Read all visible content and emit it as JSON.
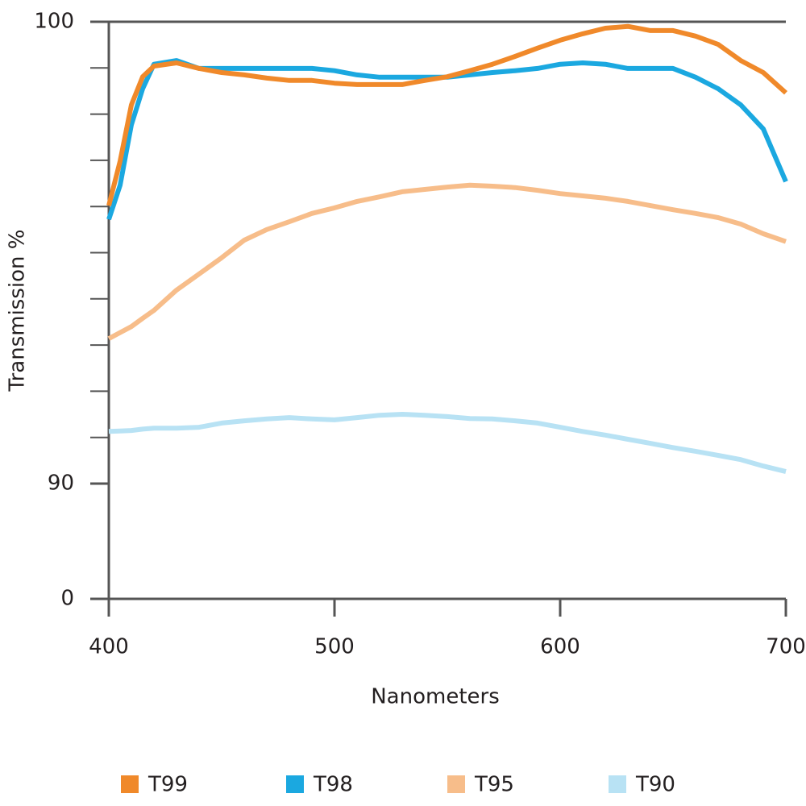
{
  "chart_data": {
    "type": "line",
    "xlabel": "Nanometers",
    "ylabel": "Transmission %",
    "x": [
      400,
      405,
      410,
      415,
      420,
      430,
      440,
      450,
      460,
      470,
      480,
      490,
      500,
      510,
      520,
      530,
      540,
      550,
      560,
      570,
      580,
      590,
      600,
      610,
      620,
      630,
      640,
      650,
      660,
      670,
      680,
      690,
      700
    ],
    "series": [
      {
        "name": "T99",
        "color": "#f0892a",
        "values": [
          96.02,
          96.98,
          98.2,
          98.81,
          99.04,
          99.11,
          98.99,
          98.9,
          98.85,
          98.78,
          98.73,
          98.73,
          98.67,
          98.64,
          98.64,
          98.64,
          98.73,
          98.81,
          98.94,
          99.08,
          99.25,
          99.43,
          99.6,
          99.74,
          99.86,
          99.9,
          99.81,
          99.81,
          99.69,
          99.51,
          99.16,
          98.9,
          98.46
        ]
      },
      {
        "name": "T98",
        "color": "#1ba8e0",
        "values": [
          95.72,
          96.46,
          97.77,
          98.55,
          99.08,
          99.16,
          98.99,
          98.99,
          98.99,
          98.99,
          98.99,
          98.99,
          98.94,
          98.85,
          98.8,
          98.8,
          98.8,
          98.8,
          98.85,
          98.9,
          98.94,
          98.99,
          99.08,
          99.11,
          99.08,
          98.99,
          98.99,
          98.99,
          98.8,
          98.55,
          98.2,
          97.68,
          96.54
        ]
      },
      {
        "name": "T95",
        "color": "#f7bd8a",
        "values": [
          93.14,
          93.27,
          93.4,
          93.58,
          93.75,
          94.19,
          94.54,
          94.89,
          95.27,
          95.5,
          95.67,
          95.85,
          95.97,
          96.11,
          96.21,
          96.32,
          96.37,
          96.42,
          96.46,
          96.44,
          96.41,
          96.35,
          96.28,
          96.23,
          96.18,
          96.11,
          96.02,
          95.93,
          95.85,
          95.76,
          95.62,
          95.41,
          95.24
        ]
      },
      {
        "name": "T90",
        "color": "#b8e2f4",
        "values": [
          91.13,
          91.14,
          91.15,
          91.18,
          91.2,
          91.2,
          91.22,
          91.31,
          91.36,
          91.4,
          91.43,
          91.4,
          91.38,
          91.43,
          91.48,
          91.5,
          91.48,
          91.45,
          91.41,
          91.4,
          91.36,
          91.31,
          91.22,
          91.13,
          91.05,
          90.96,
          90.87,
          90.78,
          90.7,
          90.61,
          90.52,
          90.38,
          90.26
        ]
      }
    ],
    "xlim": [
      400,
      700
    ],
    "xticks": [
      400,
      500,
      600,
      700
    ],
    "ylim": [
      0,
      100
    ],
    "yticks": [
      0,
      90,
      100
    ],
    "minor_yticks": [
      91,
      92,
      93,
      94,
      95,
      96,
      97,
      98,
      99
    ],
    "y_break": [
      0,
      90
    ],
    "legend": "bottom"
  }
}
